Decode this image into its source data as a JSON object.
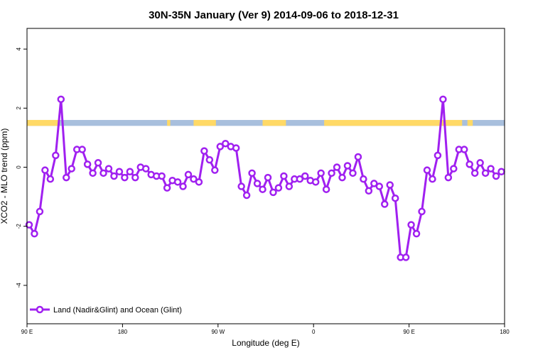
{
  "chart_data": {
    "type": "line",
    "title": "30N-35N January (Ver 9)   2014-09-06 to 2018-12-31",
    "xlabel": "Longitude (deg E)",
    "ylabel": "XCO2 - MLO trend (ppm)",
    "x_tick_labels": [
      "90 E",
      "180",
      "90 W",
      "0",
      "90 E",
      "180"
    ],
    "x_tick_values": [
      90,
      180,
      270,
      360,
      450,
      540
    ],
    "xlim": [
      90,
      540
    ],
    "y_tick_labels": [
      "-4",
      "-2",
      "0",
      "2",
      "4"
    ],
    "y_tick_values": [
      -4,
      -2,
      0,
      2,
      4
    ],
    "ylim": [
      -5.3,
      4.7
    ],
    "grid": false,
    "legend_position": "bottom-left",
    "series": [
      {
        "name": "Land (Nadir&Glint) and Ocean (Glint)",
        "color": "#a020f0",
        "x": [
          92,
          97,
          102,
          107,
          112,
          117,
          122,
          127,
          132,
          137,
          142,
          147,
          152,
          157,
          162,
          167,
          172,
          177,
          182,
          187,
          192,
          197,
          202,
          207,
          212,
          217,
          222,
          227,
          232,
          237,
          242,
          247,
          252,
          257,
          262,
          267,
          272,
          277,
          282,
          287,
          292,
          297,
          302,
          307,
          312,
          317,
          322,
          327,
          332,
          337,
          342,
          347,
          352,
          357,
          362,
          367,
          372,
          377,
          382,
          387,
          392,
          397,
          402,
          407,
          412,
          417,
          422,
          427,
          432,
          437,
          442,
          447,
          452,
          457,
          462,
          467,
          472,
          477,
          482,
          487,
          492,
          497,
          502,
          507,
          512,
          517,
          522,
          527,
          532,
          537
        ],
        "y": [
          -1.95,
          -2.25,
          -1.5,
          -0.1,
          -0.4,
          0.4,
          2.3,
          -0.35,
          -0.05,
          0.6,
          0.6,
          0.1,
          -0.2,
          0.15,
          -0.2,
          -0.05,
          -0.3,
          -0.15,
          -0.35,
          -0.15,
          -0.35,
          0.0,
          -0.05,
          -0.25,
          -0.3,
          -0.3,
          -0.7,
          -0.45,
          -0.5,
          -0.65,
          -0.25,
          -0.4,
          -0.5,
          0.55,
          0.25,
          -0.1,
          0.7,
          0.8,
          0.7,
          0.65,
          -0.65,
          -0.95,
          -0.2,
          -0.55,
          -0.75,
          -0.35,
          -0.85,
          -0.7,
          -0.3,
          -0.65,
          -0.4,
          -0.4,
          -0.3,
          -0.45,
          -0.5,
          -0.2,
          -0.75,
          -0.2,
          0.0,
          -0.35,
          0.05,
          -0.2,
          0.35,
          -0.4,
          -0.8,
          -0.55,
          -0.65,
          -1.25,
          -0.6,
          -1.05,
          -3.05,
          -3.05,
          -1.95,
          -2.25,
          -1.5,
          -0.1,
          -0.4,
          0.4,
          2.3,
          -0.35,
          -0.05,
          0.6,
          0.6,
          0.1,
          -0.2,
          0.15,
          -0.2,
          -0.05,
          -0.3,
          -0.15
        ]
      }
    ],
    "landmask_strip": {
      "y_range": [
        1.4,
        1.6
      ],
      "land_color": "#ffd966",
      "ocean_color": "#a8bfdd",
      "land_segments": [
        [
          90,
          120
        ],
        [
          222,
          225
        ],
        [
          247,
          268
        ],
        [
          312,
          334
        ],
        [
          370,
          500
        ],
        [
          505,
          510
        ]
      ]
    }
  }
}
